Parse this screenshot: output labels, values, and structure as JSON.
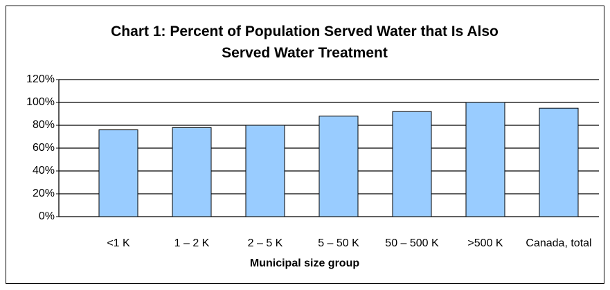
{
  "chart_data": {
    "type": "bar",
    "title": "Chart 1: Percent of Population Served Water that Is Also Served Water Treatment",
    "x_label": "Municipal size group",
    "categories": [
      "<1 K",
      "1 – 2 K",
      "2 – 5 K",
      "5 – 50 K",
      "50 – 500 K",
      ">500 K",
      "Canada, total"
    ],
    "values": [
      76,
      78,
      80,
      88,
      92,
      100,
      95
    ],
    "color": "#99ccff",
    "ylim": [
      0,
      120
    ],
    "yticks": [
      {
        "value": 0,
        "label": "0%"
      },
      {
        "value": 20,
        "label": "20%"
      },
      {
        "value": 40,
        "label": "40%"
      },
      {
        "value": 60,
        "label": "60%"
      },
      {
        "value": 80,
        "label": "80%"
      },
      {
        "value": 100,
        "label": "100%"
      },
      {
        "value": 120,
        "label": "120%"
      }
    ],
    "grid": true
  }
}
